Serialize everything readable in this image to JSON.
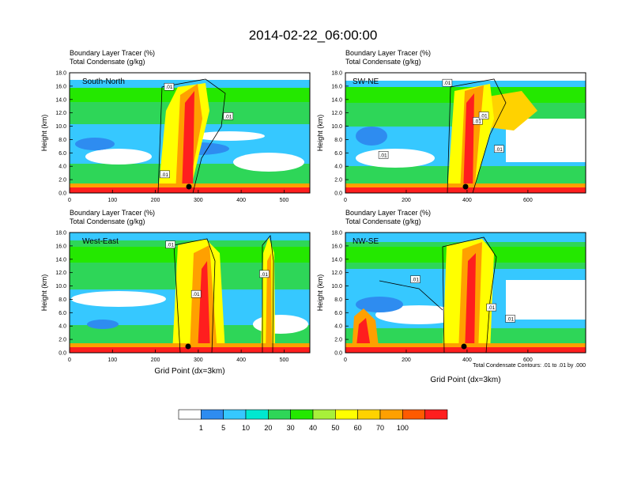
{
  "figure_title": "2014-02-22_06:00:00",
  "subtitle_line1": "Boundary Layer Tracer   (%)",
  "subtitle_line2": "Total Condensate   (g/kg)",
  "ylabel": "Height (km)",
  "xlabel": "Grid Point (dx=3km)",
  "contour_note": "Total Condensate Contours: .01 to .01 by .000",
  "contour_label": ".01",
  "colorbar": {
    "colors": [
      "#ffffff",
      "#2e8cf0",
      "#36c8ff",
      "#00e8d0",
      "#2ed658",
      "#24e800",
      "#a8f03a",
      "#ffff00",
      "#ffd200",
      "#ffa000",
      "#ff5a00",
      "#ff1e1e"
    ],
    "labels": [
      "1",
      "5",
      "10",
      "20",
      "30",
      "40",
      "50",
      "60",
      "70",
      "100"
    ]
  },
  "chart_data": [
    {
      "type": "heatmap",
      "panel_label": "South-North",
      "xlim": [
        0,
        560
      ],
      "xticks": [
        0,
        100,
        200,
        300,
        400,
        500
      ],
      "ylim": [
        0,
        18
      ],
      "yticks": [
        "0.0",
        "2.0",
        "4.0",
        "6.0",
        "8.0",
        "10.0",
        "12.0",
        "14.0",
        "16.0",
        "18.0"
      ],
      "contour_labels": [
        {
          "x": 232,
          "y": 15.9
        },
        {
          "x": 370,
          "y": 11.5
        },
        {
          "x": 222,
          "y": 2.8
        }
      ],
      "marker": {
        "x": 280,
        "y": 1.1
      }
    },
    {
      "type": "heatmap",
      "panel_label": "SW-NE",
      "xlim": [
        0,
        790
      ],
      "xticks": [
        0,
        200,
        400,
        600
      ],
      "ylim": [
        0,
        18
      ],
      "yticks": [
        "0.0",
        "2.0",
        "4.0",
        "6.0",
        "8.0",
        "10.0",
        "12.0",
        "14.0",
        "16.0",
        "18.0"
      ],
      "contour_labels": [
        {
          "x": 335,
          "y": 16.5
        },
        {
          "x": 435,
          "y": 10.8
        },
        {
          "x": 455,
          "y": 11.6
        },
        {
          "x": 125,
          "y": 5.7
        },
        {
          "x": 505,
          "y": 6.6
        }
      ],
      "marker": {
        "x": 395,
        "y": 1.1
      }
    },
    {
      "type": "heatmap",
      "panel_label": "West-East",
      "xlim": [
        0,
        560
      ],
      "xticks": [
        0,
        100,
        200,
        300,
        400,
        500
      ],
      "ylim": [
        0,
        18
      ],
      "yticks": [
        "0.0",
        "2.0",
        "4.0",
        "6.0",
        "8.0",
        "10.0",
        "12.0",
        "14.0",
        "16.0",
        "18.0"
      ],
      "contour_labels": [
        {
          "x": 235,
          "y": 16.2
        },
        {
          "x": 295,
          "y": 8.8
        },
        {
          "x": 454,
          "y": 11.8
        }
      ],
      "marker": {
        "x": 277,
        "y": 1.1
      }
    },
    {
      "type": "heatmap",
      "panel_label": "NW-SE",
      "xlim": [
        0,
        790
      ],
      "xticks": [
        0,
        200,
        400,
        600
      ],
      "ylim": [
        0,
        18
      ],
      "yticks": [
        "0.0",
        "2.0",
        "4.0",
        "6.0",
        "8.0",
        "10.0",
        "12.0",
        "14.0",
        "16.0",
        "18.0"
      ],
      "contour_labels": [
        {
          "x": 230,
          "y": 11.0
        },
        {
          "x": 480,
          "y": 6.8
        },
        {
          "x": 542,
          "y": 5.1
        }
      ],
      "marker": {
        "x": 392,
        "y": 1.1
      }
    }
  ]
}
